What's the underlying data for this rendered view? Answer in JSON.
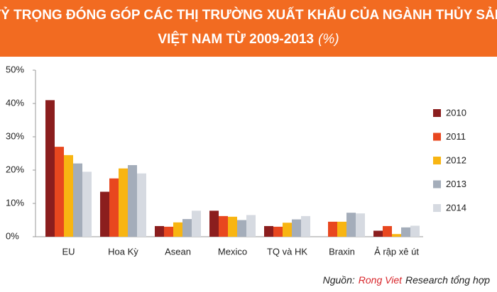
{
  "chart_data": {
    "type": "bar",
    "title_lines": [
      "TỶ TRỌNG ĐÓNG GÓP CÁC THỊ TRƯỜNG XUẤT KHẨU CỦA NGÀNH THỦY SẢN",
      "VIỆT NAM TỪ 2009-2013"
    ],
    "title_unit": "(%)",
    "categories": [
      "EU",
      "Hoa Kỳ",
      "Asean",
      "Mexico",
      "TQ và HK",
      "Braxin",
      "Ả rập xê út"
    ],
    "series": [
      {
        "name": "2010",
        "color": "#8b1e1e",
        "values": [
          41,
          13.5,
          3.2,
          7.8,
          3.2,
          null,
          1.8
        ]
      },
      {
        "name": "2011",
        "color": "#e8471f",
        "values": [
          27,
          17.5,
          3,
          6.2,
          3,
          4.5,
          3.2
        ]
      },
      {
        "name": "2012",
        "color": "#f8b512",
        "values": [
          24.5,
          20.5,
          4.3,
          6,
          4.2,
          4.5,
          0.8
        ]
      },
      {
        "name": "2013",
        "color": "#a4adba",
        "values": [
          22,
          21.5,
          5.3,
          5,
          5.2,
          7.2,
          2.8
        ]
      },
      {
        "name": "2014",
        "color": "#d6dae1",
        "values": [
          19.5,
          19,
          7.8,
          6.5,
          6.2,
          7,
          3.3
        ]
      }
    ],
    "ylim": [
      0,
      50
    ],
    "yticks": [
      {
        "value": 0,
        "label": "0%"
      },
      {
        "value": 10,
        "label": "10%"
      },
      {
        "value": 20,
        "label": "20%"
      },
      {
        "value": 30,
        "label": "30%"
      },
      {
        "value": 40,
        "label": "40%"
      },
      {
        "value": 50,
        "label": "50%"
      }
    ],
    "grid": false,
    "legend": "right",
    "source": {
      "prefix": "Nguồn:",
      "highlight": "Rong Viet",
      "suffix": "Research tổng hợp"
    }
  }
}
